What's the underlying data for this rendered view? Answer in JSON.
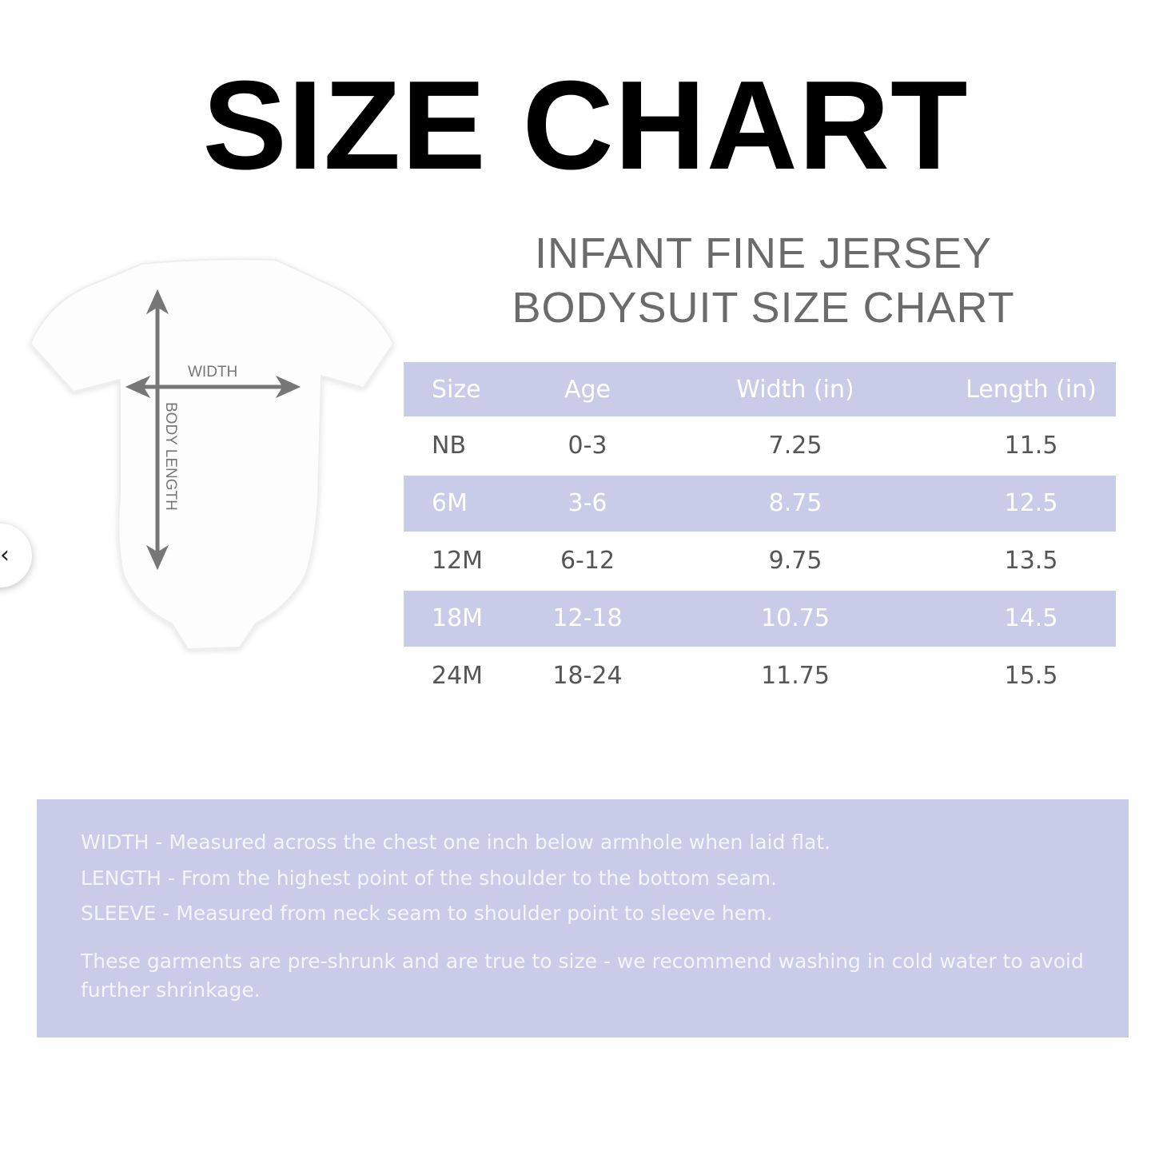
{
  "title": "SIZE CHART",
  "subtitle": [
    "INFANT FINE JERSEY",
    "BODYSUIT SIZE CHART"
  ],
  "diagram": {
    "width_label": "WIDTH",
    "length_label": "BODY LENGTH"
  },
  "table": {
    "headers": [
      "Size",
      "Age",
      "Width (in)",
      "Length (in)"
    ],
    "rows": [
      [
        "NB",
        "0-3",
        "7.25",
        "11.5"
      ],
      [
        "6M",
        "3-6",
        "8.75",
        "12.5"
      ],
      [
        "12M",
        "6-12",
        "9.75",
        "13.5"
      ],
      [
        "18M",
        "12-18",
        "10.75",
        "14.5"
      ],
      [
        "24M",
        "18-24",
        "11.75",
        "15.5"
      ]
    ]
  },
  "notes": [
    "WIDTH - Measured across the chest one inch below armhole when laid flat.",
    "LENGTH - From the highest point of the shoulder to the bottom seam.",
    "SLEEVE - Measured from neck seam to shoulder point to sleeve hem.",
    "These garments are pre-shrunk and are true to size - we recommend washing in cold water to avoid further shrinkage."
  ],
  "nav": {
    "icon": "chevron-left-icon",
    "glyph": "‹"
  },
  "colors": {
    "accent": "#c9cce8",
    "title": "#000000",
    "subtitle": "#6b6b6b",
    "arrow": "#777777"
  }
}
